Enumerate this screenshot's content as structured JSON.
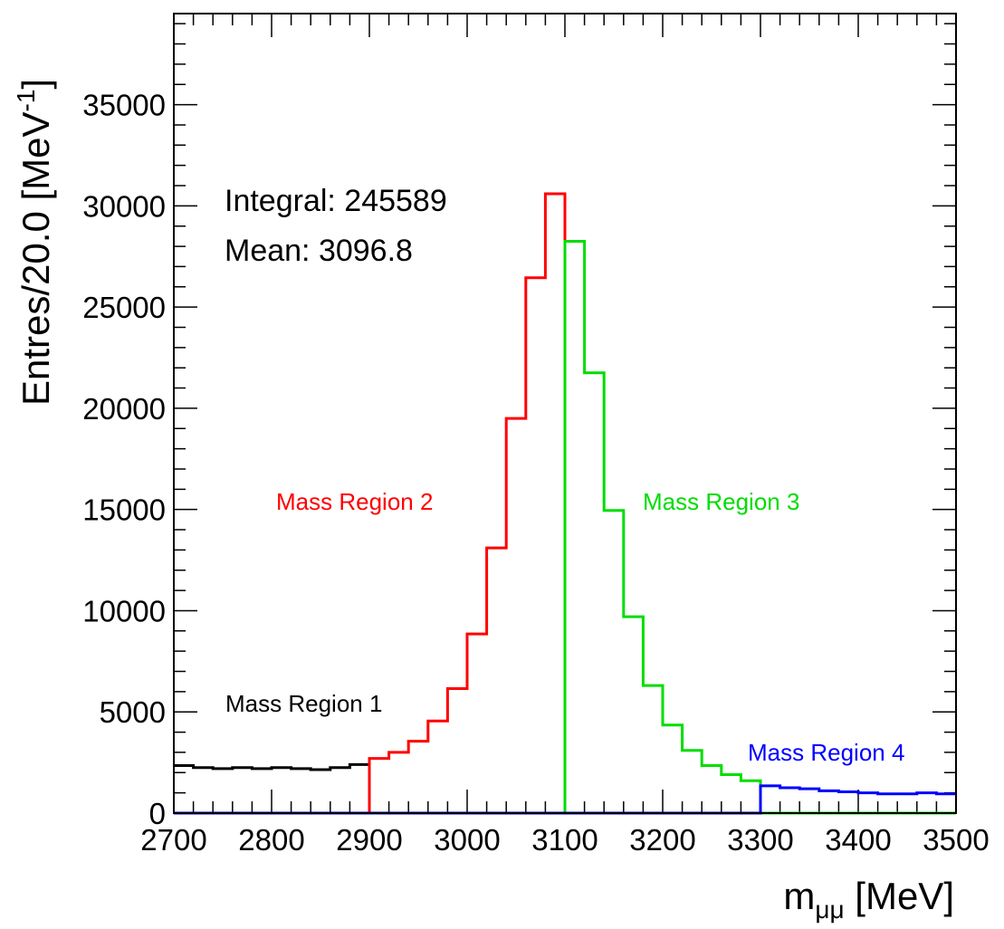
{
  "chart_data": {
    "type": "histogram",
    "xlabel_main": "m",
    "xlabel_sub": "μμ",
    "xlabel_unit": " [MeV]",
    "ylabel_main": "Entres/20.0 [MeV",
    "ylabel_sup": "-1",
    "ylabel_close": "]",
    "xlim": [
      2700,
      3500
    ],
    "ylim": [
      0,
      39500
    ],
    "bin_width": 20,
    "x_ticks": [
      2700,
      2800,
      2900,
      3000,
      3100,
      3200,
      3300,
      3400,
      3500
    ],
    "y_ticks": [
      0,
      5000,
      10000,
      15000,
      20000,
      25000,
      30000,
      35000
    ],
    "stats": {
      "integral": "Integral: 245589",
      "mean": "Mean: 3096.8"
    },
    "series": [
      {
        "name": "Mass Region 1",
        "color": "#000000",
        "range": [
          2700,
          2900
        ],
        "values": [
          2350,
          2250,
          2200,
          2250,
          2200,
          2250,
          2200,
          2150,
          2250,
          2400
        ]
      },
      {
        "name": "Mass Region 2",
        "color": "#ff0000",
        "range": [
          2900,
          3100
        ],
        "values": [
          2700,
          3000,
          3550,
          4550,
          6150,
          8850,
          13100,
          19500,
          26450,
          30600
        ]
      },
      {
        "name": "Mass Region 3",
        "color": "#00dd00",
        "range": [
          3100,
          3300
        ],
        "values": [
          28250,
          21750,
          14950,
          9700,
          6300,
          4350,
          3100,
          2350,
          1900,
          1600
        ]
      },
      {
        "name": "Mass Region 4",
        "color": "#0000ff",
        "range": [
          3300,
          3500
        ],
        "values": [
          1350,
          1250,
          1200,
          1100,
          1050,
          1000,
          950,
          950,
          1000,
          950
        ]
      }
    ]
  }
}
